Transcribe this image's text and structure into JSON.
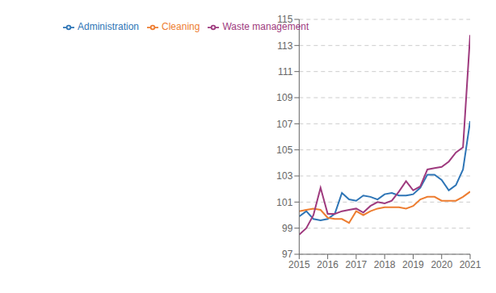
{
  "chart_data": {
    "type": "line",
    "x": [
      2015.0,
      2015.25,
      2015.5,
      2015.75,
      2016.0,
      2016.25,
      2016.5,
      2016.75,
      2017.0,
      2017.25,
      2017.5,
      2017.75,
      2018.0,
      2018.25,
      2018.5,
      2018.75,
      2019.0,
      2019.25,
      2019.5,
      2019.75,
      2020.0,
      2020.25,
      2020.5,
      2020.75,
      2021.0
    ],
    "series": [
      {
        "name": "Administration",
        "color": "#2E75B6",
        "values": [
          99.9,
          100.3,
          99.7,
          99.6,
          99.7,
          100.1,
          101.7,
          101.2,
          101.1,
          101.5,
          101.4,
          101.2,
          101.6,
          101.7,
          101.5,
          101.5,
          101.6,
          102.1,
          103.1,
          103.1,
          102.7,
          101.9,
          102.3,
          103.5,
          107.2
        ]
      },
      {
        "name": "Cleaning",
        "color": "#ED7D31",
        "values": [
          100.3,
          100.4,
          100.5,
          100.4,
          99.8,
          99.7,
          99.7,
          99.4,
          100.3,
          100.0,
          100.3,
          100.5,
          100.6,
          100.6,
          100.6,
          100.5,
          100.7,
          101.2,
          101.4,
          101.4,
          101.1,
          101.1,
          101.1,
          101.4,
          101.8
        ]
      },
      {
        "name": "Waste management",
        "color": "#9E3A7E",
        "values": [
          98.5,
          99.0,
          100.0,
          102.1,
          100.1,
          100.1,
          100.3,
          100.4,
          100.5,
          100.2,
          100.7,
          101.0,
          100.9,
          101.1,
          101.8,
          102.6,
          101.9,
          102.2,
          103.5,
          103.6,
          103.7,
          104.1,
          104.8,
          105.2,
          113.8
        ]
      }
    ],
    "xlim": [
      2015.0,
      2021.0
    ],
    "xticks": [
      2015,
      2016,
      2017,
      2018,
      2019,
      2020,
      2021
    ],
    "ylim": [
      97,
      115
    ],
    "yticks": [
      97,
      99,
      101,
      103,
      105,
      107,
      109,
      111,
      113,
      115
    ],
    "grid": true,
    "legend": "upper left"
  }
}
